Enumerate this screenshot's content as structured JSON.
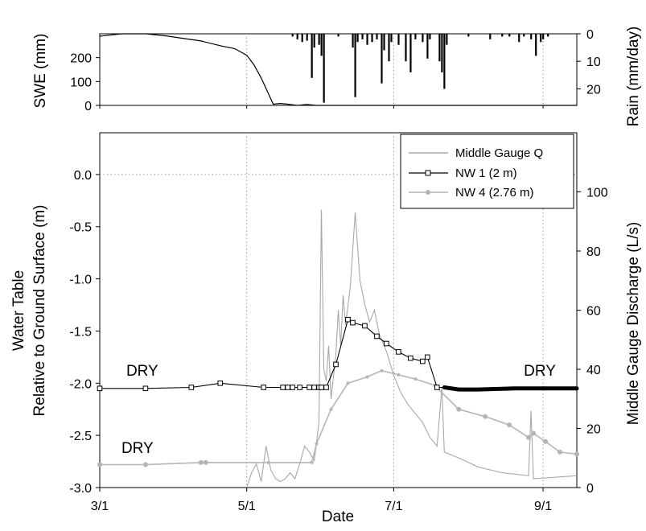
{
  "chart_data": [
    {
      "type": "line+bar",
      "panel": "top",
      "ylabel_left": "SWE (mm)",
      "ylabel_right": "Rain (mm/day)",
      "ylim_left": [
        0,
        300
      ],
      "yticks_left": [
        "0",
        "100",
        "200"
      ],
      "ylim_right_inverted": [
        0,
        26
      ],
      "yticks_right": [
        "0",
        "10",
        "20"
      ],
      "swe_series": {
        "name": "SWE",
        "points": [
          {
            "x": "3/1",
            "y": 290
          },
          {
            "x": "3/10",
            "y": 300
          },
          {
            "x": "3/20",
            "y": 300
          },
          {
            "x": "3/28",
            "y": 292
          },
          {
            "x": "4/5",
            "y": 280
          },
          {
            "x": "4/12",
            "y": 270
          },
          {
            "x": "4/20",
            "y": 250
          },
          {
            "x": "4/26",
            "y": 238
          },
          {
            "x": "5/1",
            "y": 210
          },
          {
            "x": "5/4",
            "y": 170
          },
          {
            "x": "5/7",
            "y": 115
          },
          {
            "x": "5/10",
            "y": 50
          },
          {
            "x": "5/12",
            "y": 5
          },
          {
            "x": "5/15",
            "y": 8
          },
          {
            "x": "5/18",
            "y": 5
          },
          {
            "x": "5/22",
            "y": 0
          },
          {
            "x": "5/26",
            "y": 4
          },
          {
            "x": "5/30",
            "y": 0
          },
          {
            "x": "9/15",
            "y": 0
          }
        ]
      },
      "rain_series": {
        "name": "Rain",
        "points": [
          {
            "x": "5/20",
            "y": 1
          },
          {
            "x": "5/22",
            "y": 2
          },
          {
            "x": "5/24",
            "y": 3
          },
          {
            "x": "5/26",
            "y": 2.5
          },
          {
            "x": "5/28",
            "y": 16
          },
          {
            "x": "5/29",
            "y": 5
          },
          {
            "x": "5/31",
            "y": 4
          },
          {
            "x": "6/1",
            "y": 8
          },
          {
            "x": "6/2",
            "y": 25
          },
          {
            "x": "6/8",
            "y": 1
          },
          {
            "x": "6/14",
            "y": 5
          },
          {
            "x": "6/15",
            "y": 23
          },
          {
            "x": "6/16",
            "y": 3
          },
          {
            "x": "6/18",
            "y": 2
          },
          {
            "x": "6/20",
            "y": 4
          },
          {
            "x": "6/22",
            "y": 3
          },
          {
            "x": "6/24",
            "y": 2
          },
          {
            "x": "6/26",
            "y": 18
          },
          {
            "x": "6/27",
            "y": 6
          },
          {
            "x": "6/29",
            "y": 10
          },
          {
            "x": "6/30",
            "y": 3
          },
          {
            "x": "7/3",
            "y": 4
          },
          {
            "x": "7/6",
            "y": 10
          },
          {
            "x": "7/8",
            "y": 14
          },
          {
            "x": "7/10",
            "y": 2
          },
          {
            "x": "7/13",
            "y": 3
          },
          {
            "x": "7/15",
            "y": 9
          },
          {
            "x": "7/16",
            "y": 2
          },
          {
            "x": "7/20",
            "y": 10
          },
          {
            "x": "7/21",
            "y": 14
          },
          {
            "x": "7/22",
            "y": 20
          },
          {
            "x": "7/23",
            "y": 4
          },
          {
            "x": "8/1",
            "y": 1
          },
          {
            "x": "8/10",
            "y": 2
          },
          {
            "x": "8/15",
            "y": 1
          },
          {
            "x": "8/18",
            "y": 1
          },
          {
            "x": "8/22",
            "y": 3
          },
          {
            "x": "8/24",
            "y": 1
          },
          {
            "x": "8/27",
            "y": 2
          },
          {
            "x": "8/29",
            "y": 8
          },
          {
            "x": "8/31",
            "y": 3
          },
          {
            "x": "9/1",
            "y": 2
          },
          {
            "x": "9/3",
            "y": 1
          }
        ]
      }
    },
    {
      "type": "line",
      "panel": "bottom",
      "xlabel": "Date",
      "ylabel_left_line1": "Water Table",
      "ylabel_left_line2": "Relative to Ground Surface (m)",
      "ylabel_right": "Middle Gauge Discharge (L/s)",
      "xlim": [
        "3/1",
        "9/15"
      ],
      "xticks": [
        "3/1",
        "5/1",
        "7/1",
        "9/1"
      ],
      "ylim_left": [
        -3.0,
        0.4
      ],
      "yticks_left": [
        "-3.0",
        "-2.5",
        "-2.0",
        "-1.5",
        "-1.0",
        "-0.5",
        "0.0"
      ],
      "ylim_right": [
        0,
        120
      ],
      "yticks_right": [
        "0",
        "20",
        "40",
        "60",
        "80",
        "100"
      ],
      "grid": "dotted reference lines at 5/1, 7/1, 9/1 and water table 0.0",
      "legend_position": "top-right",
      "annotations": [
        {
          "text": "DRY",
          "x": "3/12",
          "y": -1.93
        },
        {
          "text": "DRY",
          "x": "3/10",
          "y": -2.67
        },
        {
          "text": "DRY",
          "x": "8/24",
          "y": -1.93
        }
      ],
      "series": [
        {
          "name": "Middle Gauge Q",
          "axis": "right",
          "color": "#a8a8a8",
          "points": [
            {
              "x": "5/1",
              "y": 0
            },
            {
              "x": "5/3",
              "y": 5
            },
            {
              "x": "5/5",
              "y": 8
            },
            {
              "x": "5/7",
              "y": 2
            },
            {
              "x": "5/9",
              "y": 14
            },
            {
              "x": "5/11",
              "y": 6
            },
            {
              "x": "5/13",
              "y": 3
            },
            {
              "x": "5/15",
              "y": 2
            },
            {
              "x": "5/17",
              "y": 3
            },
            {
              "x": "5/19",
              "y": 5
            },
            {
              "x": "5/21",
              "y": 3
            },
            {
              "x": "5/23",
              "y": 8
            },
            {
              "x": "5/25",
              "y": 14
            },
            {
              "x": "5/27",
              "y": 12
            },
            {
              "x": "5/29",
              "y": 9
            },
            {
              "x": "5/31",
              "y": 22
            },
            {
              "x": "6/1",
              "y": 94
            },
            {
              "x": "6/2",
              "y": 40
            },
            {
              "x": "6/3",
              "y": 36
            },
            {
              "x": "6/4",
              "y": 48
            },
            {
              "x": "6/5",
              "y": 30
            },
            {
              "x": "6/7",
              "y": 45
            },
            {
              "x": "6/8",
              "y": 60
            },
            {
              "x": "6/9",
              "y": 48
            },
            {
              "x": "6/10",
              "y": 65
            },
            {
              "x": "6/11",
              "y": 55
            },
            {
              "x": "6/13",
              "y": 68
            },
            {
              "x": "6/15",
              "y": 93
            },
            {
              "x": "6/17",
              "y": 70
            },
            {
              "x": "6/19",
              "y": 62
            },
            {
              "x": "6/21",
              "y": 56
            },
            {
              "x": "6/23",
              "y": 60
            },
            {
              "x": "6/25",
              "y": 52
            },
            {
              "x": "6/28",
              "y": 46
            },
            {
              "x": "7/1",
              "y": 38
            },
            {
              "x": "7/4",
              "y": 32
            },
            {
              "x": "7/7",
              "y": 28
            },
            {
              "x": "7/10",
              "y": 25
            },
            {
              "x": "7/13",
              "y": 22
            },
            {
              "x": "7/16",
              "y": 17
            },
            {
              "x": "7/19",
              "y": 14
            },
            {
              "x": "7/21",
              "y": 34
            },
            {
              "x": "7/22",
              "y": 12
            },
            {
              "x": "7/28",
              "y": 10
            },
            {
              "x": "8/5",
              "y": 7
            },
            {
              "x": "8/15",
              "y": 5
            },
            {
              "x": "8/26",
              "y": 4
            },
            {
              "x": "8/27",
              "y": 26
            },
            {
              "x": "8/28",
              "y": 3
            },
            {
              "x": "9/15",
              "y": 4
            }
          ]
        },
        {
          "name": "NW 1 (2 m)",
          "axis": "left",
          "color": "#000000",
          "points": [
            {
              "x": "3/1",
              "y": -2.05
            },
            {
              "x": "3/20",
              "y": -2.05
            },
            {
              "x": "4/8",
              "y": -2.04
            },
            {
              "x": "4/20",
              "y": -2.0
            },
            {
              "x": "5/8",
              "y": -2.04
            },
            {
              "x": "5/16",
              "y": -2.04
            },
            {
              "x": "5/18",
              "y": -2.04
            },
            {
              "x": "5/20",
              "y": -2.04
            },
            {
              "x": "5/23",
              "y": -2.04
            },
            {
              "x": "5/27",
              "y": -2.04
            },
            {
              "x": "5/29",
              "y": -2.04
            },
            {
              "x": "5/31",
              "y": -2.04
            },
            {
              "x": "6/1",
              "y": -2.04
            },
            {
              "x": "6/3",
              "y": -2.04
            },
            {
              "x": "6/7",
              "y": -1.82
            },
            {
              "x": "6/12",
              "y": -1.39
            },
            {
              "x": "6/14",
              "y": -1.42
            },
            {
              "x": "6/19",
              "y": -1.45
            },
            {
              "x": "6/24",
              "y": -1.55
            },
            {
              "x": "6/28",
              "y": -1.62
            },
            {
              "x": "7/3",
              "y": -1.7
            },
            {
              "x": "7/8",
              "y": -1.76
            },
            {
              "x": "7/13",
              "y": -1.79
            },
            {
              "x": "7/15",
              "y": -1.75
            },
            {
              "x": "7/19",
              "y": -2.04
            },
            {
              "x": "7/22",
              "y": -2.04
            },
            {
              "x": "7/28",
              "y": -2.06
            },
            {
              "x": "8/5",
              "y": -2.06
            },
            {
              "x": "8/20",
              "y": -2.05
            },
            {
              "x": "9/15",
              "y": -2.05
            }
          ]
        },
        {
          "name": "NW 4 (2.76 m)",
          "axis": "left",
          "color": "#b4b4b4",
          "points": [
            {
              "x": "3/1",
              "y": -2.78
            },
            {
              "x": "3/20",
              "y": -2.78
            },
            {
              "x": "4/12",
              "y": -2.76
            },
            {
              "x": "4/14",
              "y": -2.76
            },
            {
              "x": "5/10",
              "y": -2.76
            },
            {
              "x": "5/28",
              "y": -2.76
            },
            {
              "x": "5/30",
              "y": -2.58
            },
            {
              "x": "6/5",
              "y": -2.25
            },
            {
              "x": "6/12",
              "y": -2.0
            },
            {
              "x": "6/20",
              "y": -1.94
            },
            {
              "x": "6/26",
              "y": -1.88
            },
            {
              "x": "7/3",
              "y": -1.92
            },
            {
              "x": "7/10",
              "y": -1.96
            },
            {
              "x": "7/18",
              "y": -2.02
            },
            {
              "x": "7/28",
              "y": -2.25
            },
            {
              "x": "8/8",
              "y": -2.32
            },
            {
              "x": "8/18",
              "y": -2.4
            },
            {
              "x": "8/26",
              "y": -2.52
            },
            {
              "x": "8/28",
              "y": -2.48
            },
            {
              "x": "9/2",
              "y": -2.56
            },
            {
              "x": "9/8",
              "y": -2.66
            },
            {
              "x": "9/15",
              "y": -2.68
            }
          ]
        }
      ]
    }
  ]
}
